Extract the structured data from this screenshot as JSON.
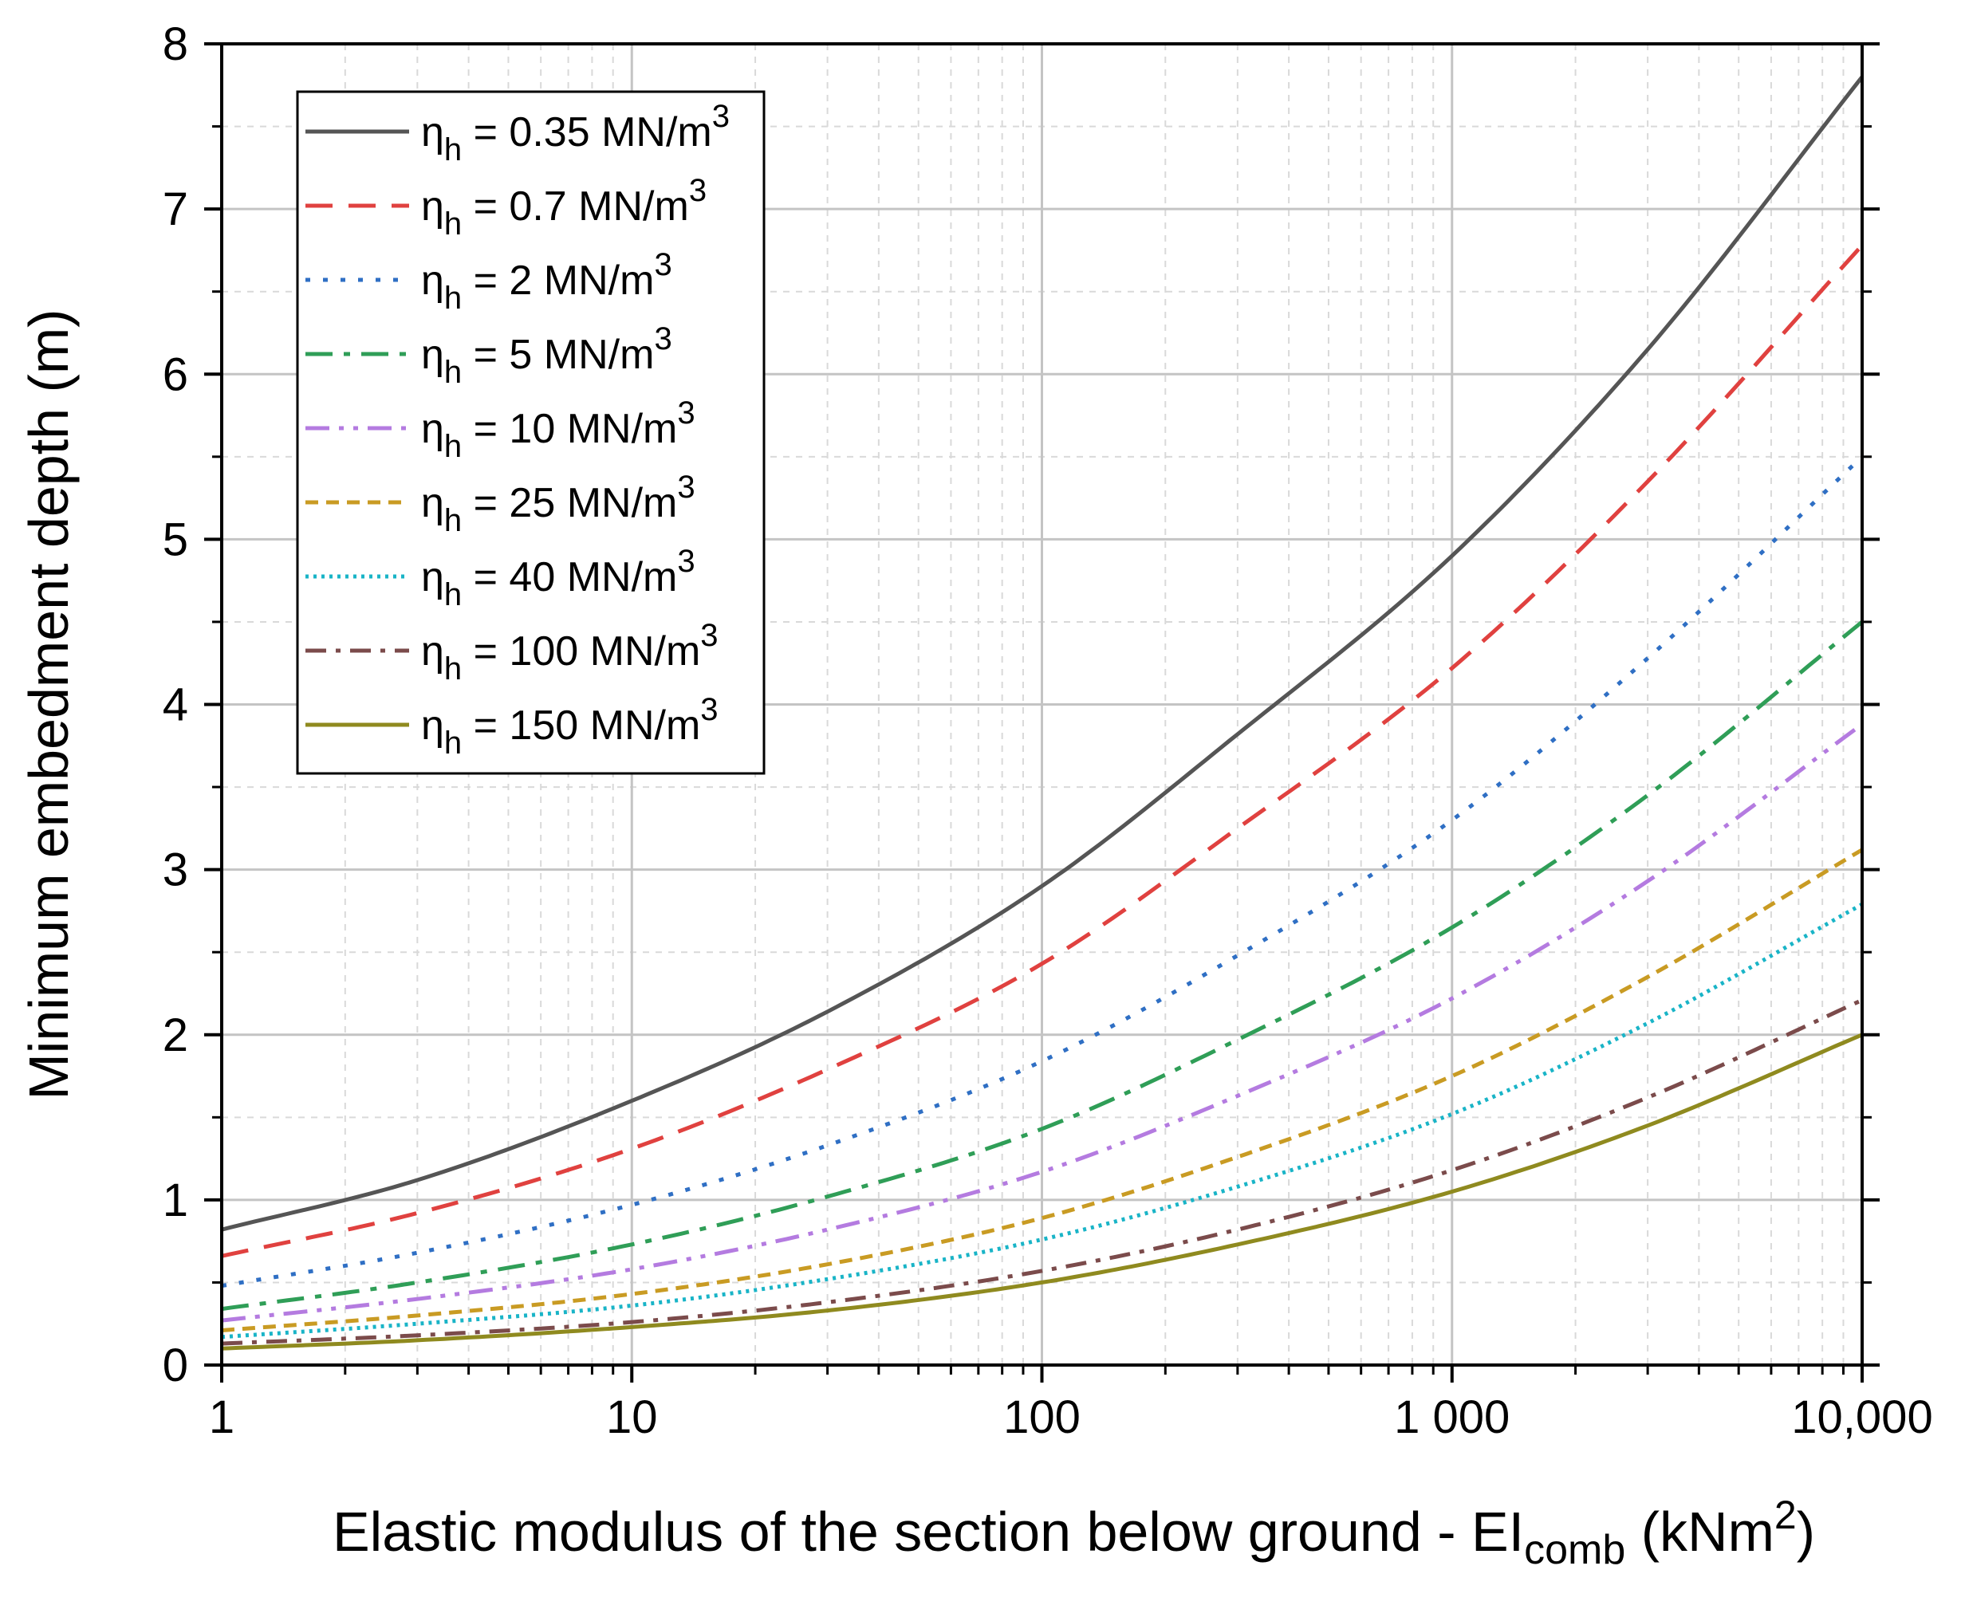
{
  "chart_data": {
    "type": "line",
    "title": "",
    "xlabel": {
      "main": "Elastic modulus of the section below ground - EI",
      "sub": "comb",
      "unit_open": " (kNm",
      "unit_sup": "2",
      "unit_close": ")"
    },
    "ylabel": "Minimum embedment depth (m)",
    "xscale": "log",
    "xlim": [
      1,
      10000
    ],
    "ylim": [
      0,
      8
    ],
    "x_ticks": [
      {
        "value": 1,
        "label": "1"
      },
      {
        "value": 10,
        "label": "10"
      },
      {
        "value": 100,
        "label": "100"
      },
      {
        "value": 1000,
        "label": "1 000"
      },
      {
        "value": 10000,
        "label": "10,000"
      }
    ],
    "y_ticks": [
      {
        "value": 0,
        "label": "0"
      },
      {
        "value": 1,
        "label": "1"
      },
      {
        "value": 2,
        "label": "2"
      },
      {
        "value": 3,
        "label": "3"
      },
      {
        "value": 4,
        "label": "4"
      },
      {
        "value": 5,
        "label": "5"
      },
      {
        "value": 6,
        "label": "6"
      },
      {
        "value": 7,
        "label": "7"
      },
      {
        "value": 8,
        "label": "8"
      }
    ],
    "grid": true,
    "legend_position": "top-left",
    "legend_symbol": "η",
    "legend_symbol_sub": "h",
    "legend_unit_sup": "3",
    "series": [
      {
        "name": "η_h = 0.35 MN/m^3",
        "label_value": "= 0.35 MN/m",
        "color": "#555555",
        "dash": "solid",
        "x": [
          1,
          3,
          10,
          30,
          100,
          300,
          1000,
          3000,
          10000
        ],
        "y": [
          0.82,
          1.12,
          1.6,
          2.14,
          2.9,
          3.82,
          4.9,
          6.15,
          7.8
        ]
      },
      {
        "name": "η_h = 0.7 MN/m^3",
        "label_value": "= 0.7 MN/m",
        "color": "#e0413f",
        "dash": "dash",
        "x": [
          1,
          3,
          10,
          30,
          100,
          300,
          1000,
          3000,
          10000
        ],
        "y": [
          0.66,
          0.92,
          1.31,
          1.79,
          2.43,
          3.25,
          4.22,
          5.35,
          6.78
        ]
      },
      {
        "name": "η_h = 2 MN/m^3",
        "label_value": "= 2 MN/m",
        "color": "#2f6fc4",
        "dash": "dot",
        "x": [
          1,
          3,
          10,
          30,
          100,
          300,
          1000,
          3000,
          10000
        ],
        "y": [
          0.48,
          0.68,
          0.97,
          1.33,
          1.84,
          2.48,
          3.3,
          4.28,
          5.5
        ]
      },
      {
        "name": "η_h = 5 MN/m^3",
        "label_value": "= 5 MN/m",
        "color": "#2f9e57",
        "dash": "dashdot",
        "x": [
          1,
          3,
          10,
          30,
          100,
          300,
          1000,
          3000,
          10000
        ],
        "y": [
          0.34,
          0.5,
          0.73,
          1.02,
          1.43,
          1.97,
          2.65,
          3.45,
          4.5
        ]
      },
      {
        "name": "η_h = 10 MN/m^3",
        "label_value": "= 10 MN/m",
        "color": "#b47be0",
        "dash": "dashdotdot",
        "x": [
          1,
          3,
          10,
          30,
          100,
          300,
          1000,
          3000,
          10000
        ],
        "y": [
          0.27,
          0.4,
          0.58,
          0.82,
          1.17,
          1.63,
          2.22,
          2.93,
          3.88
        ]
      },
      {
        "name": "η_h = 25 MN/m^3",
        "label_value": "= 25 MN/m",
        "color": "#c99b23",
        "dash": "shortdash",
        "x": [
          1,
          3,
          10,
          30,
          100,
          300,
          1000,
          3000,
          10000
        ],
        "y": [
          0.21,
          0.3,
          0.43,
          0.61,
          0.89,
          1.26,
          1.75,
          2.35,
          3.12
        ]
      },
      {
        "name": "η_h = 40 MN/m^3",
        "label_value": "= 40 MN/m",
        "color": "#19b4c7",
        "dash": "finedot",
        "x": [
          1,
          3,
          10,
          30,
          100,
          300,
          1000,
          3000,
          10000
        ],
        "y": [
          0.17,
          0.25,
          0.36,
          0.52,
          0.76,
          1.08,
          1.52,
          2.07,
          2.79
        ]
      },
      {
        "name": "η_h = 100 MN/m^3",
        "label_value": "= 100 MN/m",
        "color": "#7b4b4b",
        "dash": "dashdot2",
        "x": [
          1,
          3,
          10,
          30,
          100,
          300,
          1000,
          3000,
          10000
        ],
        "y": [
          0.13,
          0.18,
          0.26,
          0.38,
          0.57,
          0.82,
          1.18,
          1.62,
          2.21
        ]
      },
      {
        "name": "η_h = 150 MN/m^3",
        "label_value": "= 150 MN/m",
        "color": "#8f8a1f",
        "dash": "solid",
        "x": [
          1,
          3,
          10,
          30,
          100,
          300,
          1000,
          3000,
          10000
        ],
        "y": [
          0.1,
          0.15,
          0.23,
          0.33,
          0.5,
          0.73,
          1.05,
          1.45,
          2.0
        ]
      }
    ]
  }
}
